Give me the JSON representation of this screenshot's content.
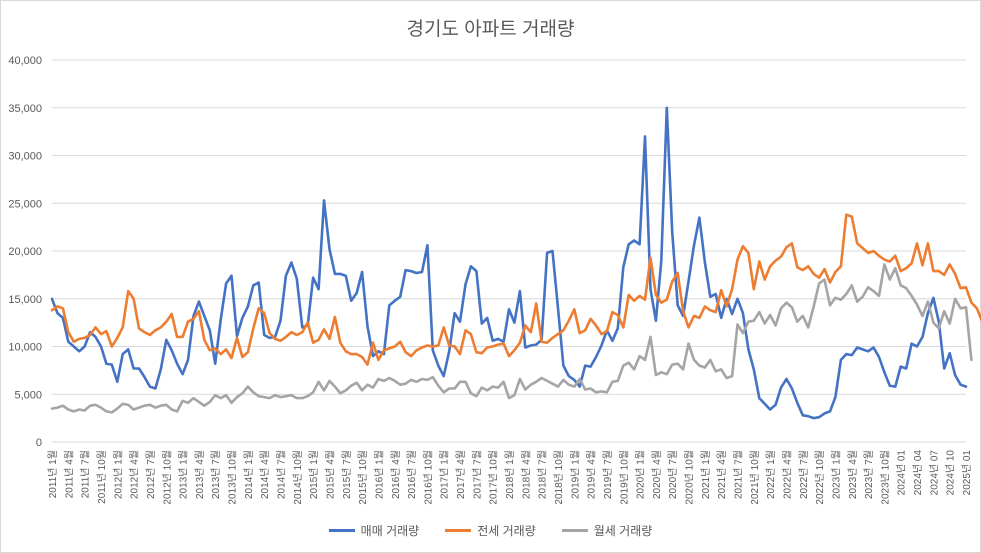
{
  "chart_data": {
    "type": "line",
    "title": "경기도 아파트 거래량",
    "xlabel": "",
    "ylabel": "",
    "ylim": [
      0,
      40000
    ],
    "yticks": [
      0,
      5000,
      10000,
      15000,
      20000,
      25000,
      30000,
      35000,
      40000
    ],
    "ytick_labels": [
      "0",
      "5,000",
      "10,000",
      "15,000",
      "20,000",
      "25,000",
      "30,000",
      "35,000",
      "40,000"
    ],
    "grid": true,
    "legend_position": "bottom",
    "x_ticks": [
      "2011년 1월",
      "2011년 4월",
      "2011년 7월",
      "2011년 10월",
      "2012년 1월",
      "2012년 4월",
      "2012년 7월",
      "2012년 10월",
      "2013년 1월",
      "2013년 4월",
      "2013년 7월",
      "2013년 10월",
      "2014년 1월",
      "2014년 4월",
      "2014년 7월",
      "2014년 10월",
      "2015년 1월",
      "2015년 4월",
      "2015년 7월",
      "2015년 10월",
      "2016년 1월",
      "2016년 4월",
      "2016년 7월",
      "2016년 10월",
      "2017년 1월",
      "2017년 4월",
      "2017년 7월",
      "2017년 10월",
      "2018년 1월",
      "2018년 4월",
      "2018년 7월",
      "2018년 10월",
      "2019년 1월",
      "2019년 4월",
      "2019년 7월",
      "2019년 10월",
      "2020년 1월",
      "2020년 4월",
      "2020년 7월",
      "2020년 10월",
      "2021년 1월",
      "2021년 4월",
      "2021년 7월",
      "2021년 10월",
      "2022년 1월",
      "2022년 4월",
      "2022년 7월",
      "2022년 10월",
      "2023년 1월",
      "2023년 4월",
      "2023년 7월",
      "2023년 10월",
      "2024년 01",
      "2024년 04",
      "2024년 07",
      "2024년 10",
      "2025년 01"
    ],
    "series": [
      {
        "name": "매매 거래량",
        "color": "#4472C4",
        "values": [
          15000,
          13500,
          13000,
          10500,
          10000,
          9500,
          10000,
          11500,
          11000,
          10000,
          8200,
          8100,
          6300,
          9200,
          9700,
          7700,
          7700,
          6800,
          5800,
          5600,
          7600,
          10700,
          9600,
          8200,
          7100,
          8600,
          13200,
          14700,
          13200,
          11700,
          8200,
          12800,
          16600,
          17400,
          11100,
          13000,
          14200,
          16400,
          16700,
          11200,
          10900,
          11000,
          12700,
          17400,
          18800,
          17100,
          12000,
          12200,
          17200,
          16000,
          25300,
          20200,
          17600,
          17600,
          17400,
          14800,
          15600,
          17800,
          12100,
          9000,
          9500,
          9200,
          14300,
          14800,
          15200,
          18000,
          17900,
          17700,
          17800,
          20600,
          9600,
          8000,
          6900,
          9500,
          13500,
          12600,
          16500,
          18400,
          17900,
          12400,
          13000,
          10600,
          10800,
          10500,
          13900,
          12500,
          15800,
          9900,
          10100,
          10200,
          10700,
          19800,
          20000,
          14000,
          8000,
          6900,
          6500,
          5800,
          8000,
          7900,
          8900,
          10100,
          11700,
          10600,
          11900,
          18300,
          20700,
          21100,
          20700,
          32000,
          16000,
          12700,
          19000,
          35000,
          22000,
          14300,
          13200,
          16800,
          20600,
          23500,
          18800,
          15200,
          15500,
          13000,
          15000,
          13400,
          15000,
          13500,
          9700,
          7600,
          4600,
          4000,
          3400,
          3900,
          5700,
          6600,
          5600,
          4100,
          2800,
          2700,
          2500,
          2600,
          3000,
          3200,
          4700,
          8600,
          9200,
          9100,
          9900,
          9700,
          9500,
          9900,
          8900,
          7300,
          5900,
          5800,
          7900,
          7700,
          10300,
          10000,
          11000,
          13500,
          15100,
          12600,
          7700,
          9300,
          7000,
          6000,
          5800
        ],
        "ends": "2025년 01월"
      },
      {
        "name": "전세 거래량",
        "color": "#ED7D31",
        "values": [
          13800,
          14200,
          14000,
          11500,
          10500,
          10800,
          10900,
          11200,
          12000,
          11300,
          11600,
          10000,
          10900,
          12000,
          15800,
          15000,
          11900,
          11500,
          11200,
          11700,
          12000,
          12600,
          13400,
          11000,
          11000,
          12600,
          12900,
          13700,
          10700,
          9600,
          9800,
          9200,
          9700,
          8800,
          10900,
          8900,
          9400,
          11900,
          14000,
          13500,
          11400,
          10800,
          10600,
          11000,
          11500,
          11200,
          11500,
          12500,
          10400,
          10700,
          11800,
          10800,
          13100,
          10400,
          9500,
          9200,
          9200,
          8900,
          8100,
          10400,
          8600,
          9600,
          9800,
          10000,
          10500,
          9400,
          9000,
          9600,
          9900,
          10100,
          10000,
          10100,
          12000,
          10100,
          10000,
          9200,
          11700,
          11300,
          9400,
          9300,
          9900,
          10000,
          10200,
          10300,
          9000,
          9600,
          10400,
          12200,
          11500,
          14500,
          10500,
          10400,
          10900,
          11300,
          11700,
          12700,
          13900,
          11400,
          11700,
          12900,
          12200,
          11300,
          11600,
          13600,
          13300,
          12000,
          15400,
          14800,
          15300,
          14900,
          19300,
          15400,
          14600,
          14900,
          16800,
          17700,
          13700,
          12000,
          13200,
          13000,
          14200,
          13800,
          13600,
          15900,
          14200,
          16000,
          19100,
          20500,
          19800,
          16000,
          18900,
          17000,
          18400,
          19000,
          19400,
          20400,
          20800,
          18300,
          18000,
          18400,
          17600,
          17200,
          18100,
          16700,
          17800,
          18400,
          23800,
          23600,
          20800,
          20300,
          19800,
          20000,
          19500,
          19100,
          18900,
          19500,
          17900,
          18200,
          18700,
          20800,
          18500,
          20800,
          17900,
          17900,
          17500,
          18600,
          17600,
          16100,
          16200,
          14600,
          14000,
          12600
        ]
      },
      {
        "name": "월세 거래량",
        "color": "#A5A5A5",
        "values": [
          3500,
          3600,
          3800,
          3400,
          3200,
          3400,
          3300,
          3800,
          3900,
          3600,
          3200,
          3100,
          3500,
          4000,
          3900,
          3400,
          3600,
          3800,
          3900,
          3600,
          3800,
          3900,
          3400,
          3200,
          4300,
          4100,
          4600,
          4200,
          3800,
          4200,
          4900,
          4600,
          4900,
          4100,
          4700,
          5100,
          5800,
          5200,
          4800,
          4700,
          4600,
          4900,
          4700,
          4800,
          4900,
          4600,
          4600,
          4800,
          5200,
          6300,
          5400,
          6400,
          5800,
          5100,
          5400,
          5900,
          6200,
          5400,
          6000,
          5700,
          6600,
          6400,
          6700,
          6400,
          6000,
          6100,
          6500,
          6300,
          6600,
          6500,
          6800,
          5900,
          5200,
          5600,
          5600,
          6300,
          6300,
          5100,
          4800,
          5700,
          5400,
          5800,
          5700,
          6300,
          4600,
          4900,
          6600,
          5500,
          6000,
          6300,
          6700,
          6400,
          6100,
          5800,
          6500,
          6000,
          5800,
          6600,
          5500,
          5600,
          5200,
          5300,
          5200,
          6300,
          6400,
          8000,
          8300,
          7600,
          9000,
          8600,
          11000,
          7000,
          7300,
          7100,
          8100,
          8200,
          7600,
          10300,
          8600,
          8000,
          7800,
          8600,
          7400,
          7600,
          6700,
          6900,
          12300,
          11400,
          12600,
          12700,
          13600,
          12400,
          13300,
          12200,
          14000,
          14600,
          14100,
          12600,
          13200,
          12000,
          14200,
          16600,
          17000,
          14300,
          15100,
          14900,
          15500,
          16400,
          14700,
          15200,
          16200,
          15800,
          15300,
          18600,
          17000,
          18200,
          16400,
          16100,
          15300,
          14400,
          13200,
          14700,
          12500,
          11900,
          13700,
          12400,
          15000,
          14000,
          14100,
          8600
        ]
      }
    ]
  },
  "legend": {
    "items": [
      {
        "label": "매매 거래량",
        "color": "#4472C4"
      },
      {
        "label": "전세 거래량",
        "color": "#ED7D31"
      },
      {
        "label": "월세 거래량",
        "color": "#A5A5A5"
      }
    ]
  }
}
